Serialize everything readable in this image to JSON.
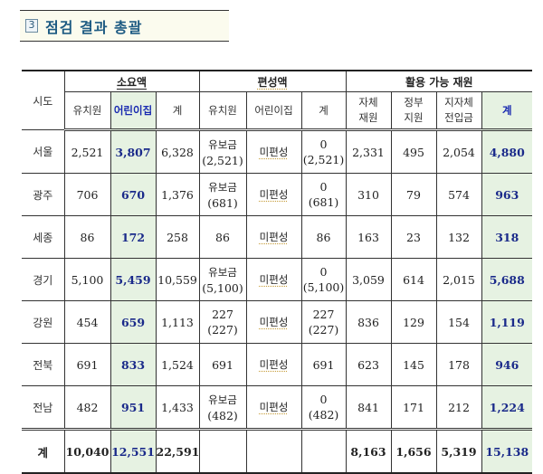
{
  "title": {
    "number": "3",
    "text": "점검 결과 총괄"
  },
  "table": {
    "header": {
      "sido": "시도",
      "groups": {
        "required": "소요액",
        "budgeted": "편성액",
        "available": "활용 가능 재원"
      },
      "sub": {
        "kindergarten": "유치원",
        "daycare": "어린이집",
        "total": "계",
        "own_line1": "자체",
        "own_line2": "재원",
        "gov_line1": "정부",
        "gov_line2": "지원",
        "local_line1": "지자체",
        "local_line2": "전입금"
      }
    },
    "rows": [
      {
        "sido": "서울",
        "req_kg": "2,521",
        "req_dc": "3,807",
        "req_total": "6,328",
        "bud_kg_1": "유보금",
        "bud_kg_2": "(2,521)",
        "bud_dc": "미편성",
        "bud_total_1": "0",
        "bud_total_2": "(2,521)",
        "own": "2,331",
        "gov": "495",
        "local": "2,054",
        "avail_total": "4,880"
      },
      {
        "sido": "광주",
        "req_kg": "706",
        "req_dc": "670",
        "req_total": "1,376",
        "bud_kg_1": "유보금",
        "bud_kg_2": "(681)",
        "bud_dc": "미편성",
        "bud_total_1": "0",
        "bud_total_2": "(681)",
        "own": "310",
        "gov": "79",
        "local": "574",
        "avail_total": "963"
      },
      {
        "sido": "세종",
        "req_kg": "86",
        "req_dc": "172",
        "req_total": "258",
        "bud_kg_1": "86",
        "bud_kg_2": "",
        "bud_dc": "미편성",
        "bud_total_1": "86",
        "bud_total_2": "",
        "own": "163",
        "gov": "23",
        "local": "132",
        "avail_total": "318"
      },
      {
        "sido": "경기",
        "req_kg": "5,100",
        "req_dc": "5,459",
        "req_total": "10,559",
        "bud_kg_1": "유보금",
        "bud_kg_2": "(5,100)",
        "bud_dc": "미편성",
        "bud_total_1": "0",
        "bud_total_2": "(5,100)",
        "own": "3,059",
        "gov": "614",
        "local": "2,015",
        "avail_total": "5,688"
      },
      {
        "sido": "강원",
        "req_kg": "454",
        "req_dc": "659",
        "req_total": "1,113",
        "bud_kg_1": "227",
        "bud_kg_2": "(227)",
        "bud_dc": "미편성",
        "bud_total_1": "227",
        "bud_total_2": "(227)",
        "own": "836",
        "gov": "129",
        "local": "154",
        "avail_total": "1,119"
      },
      {
        "sido": "전북",
        "req_kg": "691",
        "req_dc": "833",
        "req_total": "1,524",
        "bud_kg_1": "691",
        "bud_kg_2": "",
        "bud_dc": "미편성",
        "bud_total_1": "691",
        "bud_total_2": "",
        "own": "623",
        "gov": "145",
        "local": "178",
        "avail_total": "946"
      },
      {
        "sido": "전남",
        "req_kg": "482",
        "req_dc": "951",
        "req_total": "1,433",
        "bud_kg_1": "유보금",
        "bud_kg_2": "(482)",
        "bud_dc": "미편성",
        "bud_total_1": "0",
        "bud_total_2": "(482)",
        "own": "841",
        "gov": "171",
        "local": "212",
        "avail_total": "1,224"
      }
    ],
    "total": {
      "sido": "계",
      "req_kg": "10,040",
      "req_dc": "12,551",
      "req_total": "22,591",
      "bud_kg": "",
      "bud_dc": "",
      "bud_total": "",
      "own": "8,163",
      "gov": "1,656",
      "local": "5,319",
      "avail_total": "15,138"
    }
  },
  "colors": {
    "title_text": "#1d5a82",
    "title_bg": "#fbfbee",
    "highlight_bg": "#e6f2e2",
    "highlight_text": "#1a2a8a"
  }
}
